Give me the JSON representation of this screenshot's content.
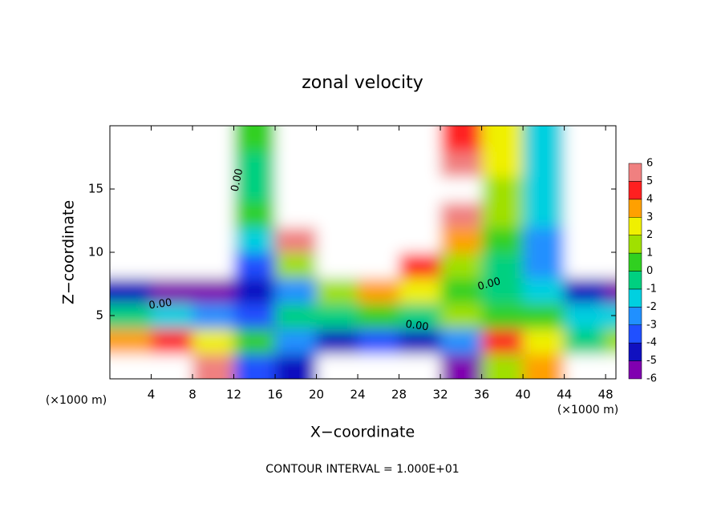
{
  "chart_data": {
    "type": "contour",
    "title": "zonal velocity",
    "x_label": "X−coordinate",
    "y_label": "Z−coordinate",
    "axis_unit": "(×1000 m)",
    "footnote": "CONTOUR INTERVAL = 1.000E+01",
    "contour_labels": [
      "0.00",
      "0.00",
      "0.00",
      "0.00"
    ],
    "xlim": [
      0,
      49
    ],
    "ylim": [
      0,
      20
    ],
    "xticks": [
      4,
      8,
      12,
      16,
      20,
      24,
      28,
      32,
      36,
      40,
      44,
      48
    ],
    "yticks": [
      5,
      10,
      15
    ],
    "x": [
      2,
      6,
      10,
      14,
      18,
      22,
      26,
      30,
      34,
      38,
      42,
      46,
      50
    ],
    "y": [
      1,
      3,
      5,
      7,
      9,
      11,
      13,
      15,
      17,
      19
    ],
    "z": [
      [
        8,
        8,
        6,
        -3,
        -4,
        -8,
        -8,
        -8,
        -5,
        2,
        4,
        -8,
        -8
      ],
      [
        4,
        5,
        3,
        1,
        -2,
        -4,
        -3,
        -4,
        -2,
        5,
        3,
        0,
        2
      ],
      [
        0,
        -1,
        -2,
        -3,
        0,
        0,
        1,
        0,
        2,
        1,
        1,
        -1,
        -1
      ],
      [
        -4,
        -5,
        -5,
        -4,
        -2,
        2,
        4,
        3,
        1,
        0,
        -1,
        -4,
        -5
      ],
      [
        -8,
        -8,
        -8,
        -3,
        2,
        8,
        8,
        5,
        2,
        0,
        -2,
        -7,
        -8
      ],
      [
        -8,
        -8,
        -8,
        -1,
        6,
        8,
        8,
        8,
        4,
        1,
        -2,
        -8,
        -8
      ],
      [
        -8,
        -8,
        -8,
        1,
        8,
        8,
        8,
        8,
        6,
        2,
        -1,
        -8,
        -8
      ],
      [
        -8,
        -8,
        -8,
        0,
        8,
        8,
        8,
        8,
        7,
        2,
        -1,
        -8,
        -8
      ],
      [
        -8,
        -8,
        -7,
        0,
        8,
        8,
        8,
        8,
        6,
        3,
        -1,
        -8,
        -8
      ],
      [
        -8,
        -8,
        -7,
        1,
        8,
        8,
        8,
        8,
        5,
        3,
        -1,
        -8,
        -8
      ]
    ],
    "levels": [
      -6,
      -5,
      -4,
      -3,
      -2,
      -1,
      0,
      1,
      2,
      3,
      4,
      5,
      6
    ],
    "colors": [
      "#8000b0",
      "#1010c0",
      "#2050ff",
      "#2090ff",
      "#00d0e0",
      "#00d080",
      "#30d020",
      "#a0e000",
      "#f0f000",
      "#ffa000",
      "#ff2020",
      "#f08080"
    ]
  }
}
